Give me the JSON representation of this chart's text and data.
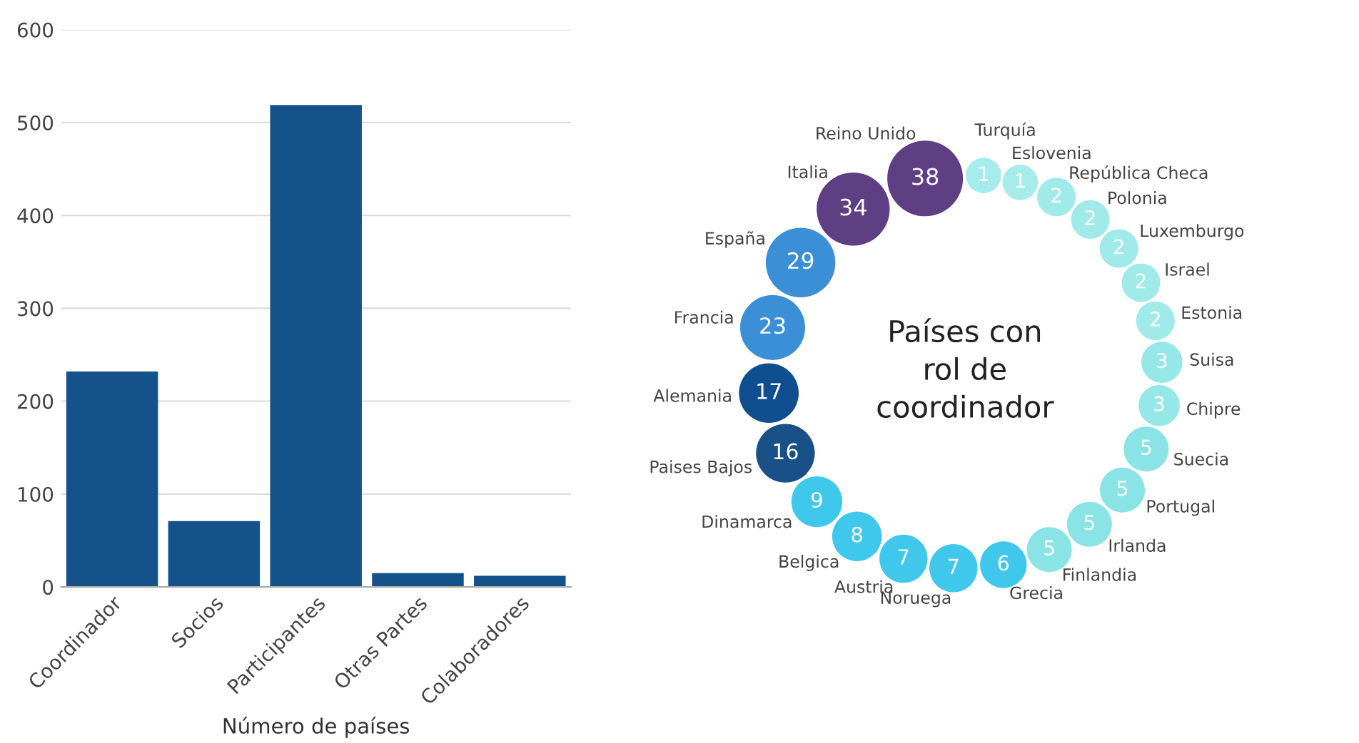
{
  "chart_data": [
    {
      "type": "bar",
      "xlabel": "Número de países",
      "categories": [
        "Coordinador",
        "Socios",
        "Participantes",
        "Otras Partes",
        "Colaboradores"
      ],
      "values": [
        232,
        71,
        519,
        15,
        12
      ],
      "color": "#16528a",
      "ylim": [
        0,
        600
      ],
      "yticks": [
        0,
        100,
        200,
        300,
        400,
        500,
        600
      ],
      "grid": "y"
    },
    {
      "type": "other",
      "title": "Países con rol de coordinador",
      "categories": [
        "Turquía",
        "Eslovenia",
        "República Checa",
        "Polonia",
        "Luxemburgo",
        "Israel",
        "Estonia",
        "Suisa",
        "Chipre",
        "Suecia",
        "Portugal",
        "Irlanda",
        "Finlandia",
        "Grecia",
        "Noruega",
        "Austria",
        "Belgica",
        "Dinamarca",
        "Paises Bajos",
        "Alemania",
        "Francia",
        "España",
        "Italia",
        "Reino Unido"
      ],
      "values": [
        1,
        1,
        2,
        2,
        2,
        2,
        2,
        3,
        3,
        5,
        5,
        5,
        5,
        6,
        7,
        7,
        8,
        9,
        16,
        17,
        23,
        29,
        34,
        38
      ],
      "colors": [
        "#a6ecec",
        "#a6ecec",
        "#a0eaea",
        "#a0eaea",
        "#a0eaea",
        "#a0eaea",
        "#a0eaea",
        "#96e8e8",
        "#96e8e8",
        "#8ae4e6",
        "#8ae4e6",
        "#8ae4e6",
        "#8ae4e6",
        "#40c8ec",
        "#40c8ec",
        "#40c8ec",
        "#40c8ec",
        "#40c8ec",
        "#1a5088",
        "#0f4f8f",
        "#3a8fd6",
        "#3a8fd6",
        "#5e3f84",
        "#5e3f84"
      ],
      "data_labels": true
    }
  ]
}
